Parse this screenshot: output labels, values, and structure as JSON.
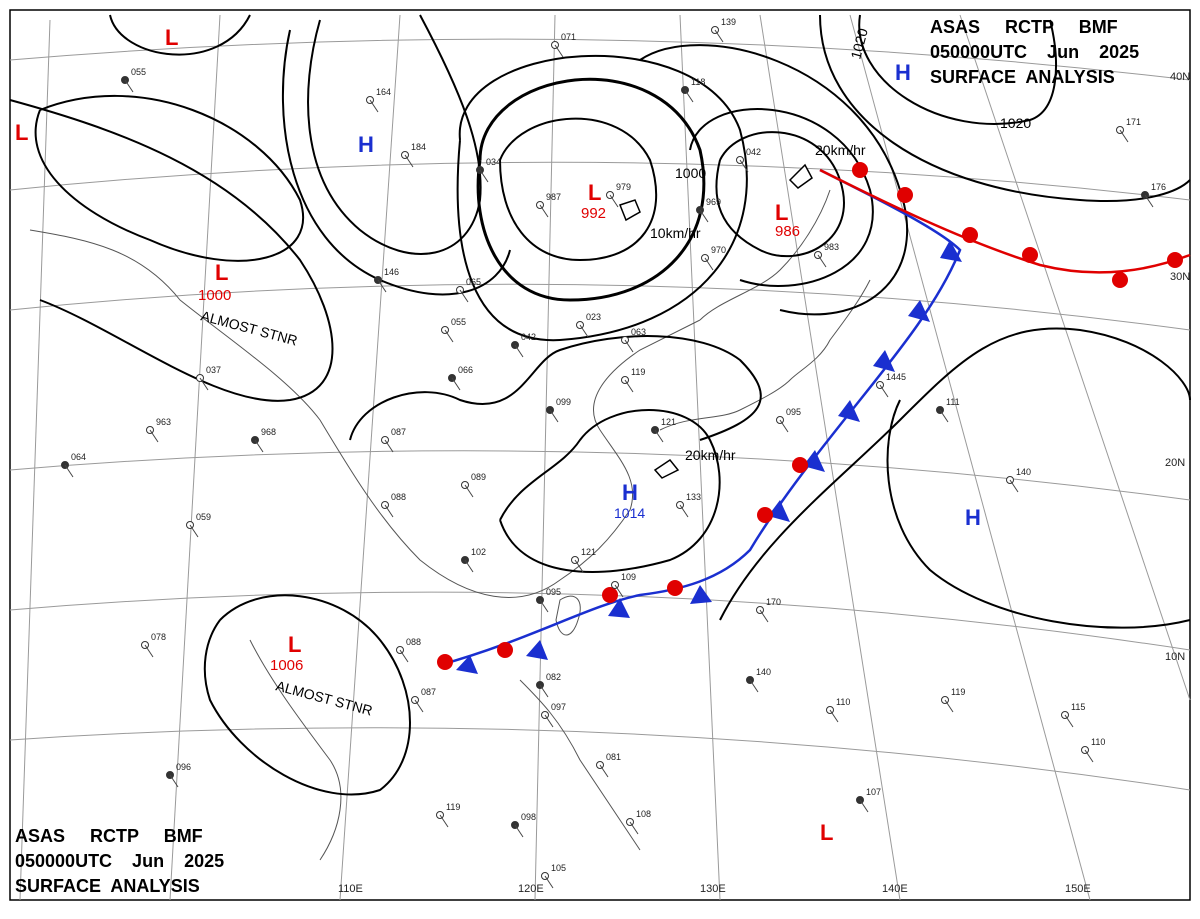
{
  "header": {
    "line1": "ASAS     RCTP     BMF",
    "line2": "050000UTC    Jun    2025",
    "line3": "SURFACE  ANALYSIS"
  },
  "footer": {
    "line1": "ASAS     RCTP     BMF",
    "line2": "050000UTC    Jun    2025",
    "line3": "SURFACE  ANALYSIS"
  },
  "longitude_ticks": [
    "110E",
    "120E",
    "130E",
    "140E",
    "150E"
  ],
  "latitude_ticks": [
    "40N",
    "30N",
    "20N",
    "10N"
  ],
  "pressure_systems": [
    {
      "type": "L",
      "pressure": ""
    },
    {
      "type": "L",
      "pressure": ""
    },
    {
      "type": "L",
      "pressure": "992"
    },
    {
      "type": "L",
      "pressure": "986"
    },
    {
      "type": "L",
      "pressure": "1000",
      "note": "ALMOST STNR"
    },
    {
      "type": "L",
      "pressure": "1006",
      "note": "ALMOST STNR"
    },
    {
      "type": "L",
      "pressure": ""
    },
    {
      "type": "H",
      "pressure": ""
    },
    {
      "type": "H",
      "pressure": ""
    },
    {
      "type": "H",
      "pressure": "1014"
    },
    {
      "type": "H",
      "pressure": ""
    }
  ],
  "isobar_labels": [
    "1000",
    "1020",
    "1020"
  ],
  "motion_labels": [
    "20km/hr",
    "10km/hr",
    "20km/hr"
  ],
  "colors": {
    "low": "#e00000",
    "high": "#1a2fd0",
    "isobar": "#000000",
    "grid": "#9a9a9a",
    "coast": "#555555"
  },
  "station_labels": [
    "055",
    "164",
    "184",
    "034",
    "987",
    "979",
    "969",
    "970",
    "983",
    "146",
    "065",
    "055",
    "042",
    "023",
    "063",
    "066",
    "037",
    "963",
    "968",
    "087",
    "089",
    "099",
    "119",
    "095",
    "121",
    "133",
    "088",
    "102",
    "121",
    "109",
    "095",
    "088",
    "087",
    "082",
    "097",
    "081",
    "098",
    "108",
    "105",
    "111",
    "140",
    "170",
    "140",
    "110",
    "119",
    "107",
    "115",
    "110",
    "096",
    "119",
    "078",
    "064",
    "059",
    "171",
    "176",
    "071",
    "139",
    "118",
    "042",
    "1445"
  ]
}
